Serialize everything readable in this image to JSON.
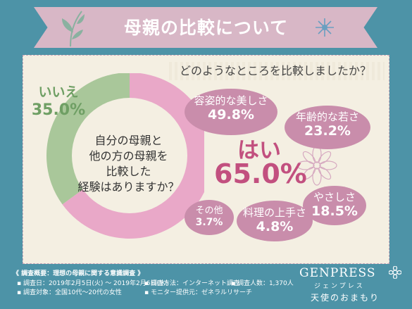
{
  "title": "母親の比較について",
  "question": "どのようなところを比較しましたか？",
  "center_question": [
    "自分の母親と",
    "他の方の母親を",
    "比較した",
    "経験はありますか？"
  ],
  "chart_data": {
    "type": "pie",
    "style": "donut",
    "labels": [
      "はい",
      "いいえ"
    ],
    "values": [
      65.0,
      35.0
    ],
    "value_labels": [
      "65.0%",
      "35.0%"
    ],
    "colors": [
      "#e9a8c8",
      "#a9c79a"
    ],
    "breakdown": [
      {
        "label": "容姿的な美しさ",
        "value": 49.8,
        "value_label": "49.8%"
      },
      {
        "label": "年齢的な若さ",
        "value": 23.2,
        "value_label": "23.2%"
      },
      {
        "label": "やさしさ",
        "value": 18.5,
        "value_label": "18.5%"
      },
      {
        "label": "料理の上手さ",
        "value": 4.8,
        "value_label": "4.8%"
      },
      {
        "label": "その他",
        "value": 3.7,
        "value_label": "3.7%"
      }
    ]
  },
  "footer": {
    "heading": "《 調査概要：理想の母親に関する意識調査 》",
    "date": "▪ 調査日：2019年2月5日(火) ～ 2019年2月6日(水)",
    "method": "▪ 調査方法：インターネット調査",
    "count": "▪ 調査人数：1,370人",
    "target": "▪ 調査対象：全国10代～20代の女性",
    "provider": "▪ モニター提供元：ゼネラルリサーチ"
  },
  "brand": {
    "name": "GENPRESS",
    "kana": "ジェンプレス",
    "tagline": "天使のおまもり"
  },
  "colors": {
    "background": "#4d93a7",
    "banner": "#d8b7c6",
    "panel": "#f4efe2",
    "accent": "#c2507f",
    "bubble": "#c98dab",
    "green": "#6f9f64"
  }
}
